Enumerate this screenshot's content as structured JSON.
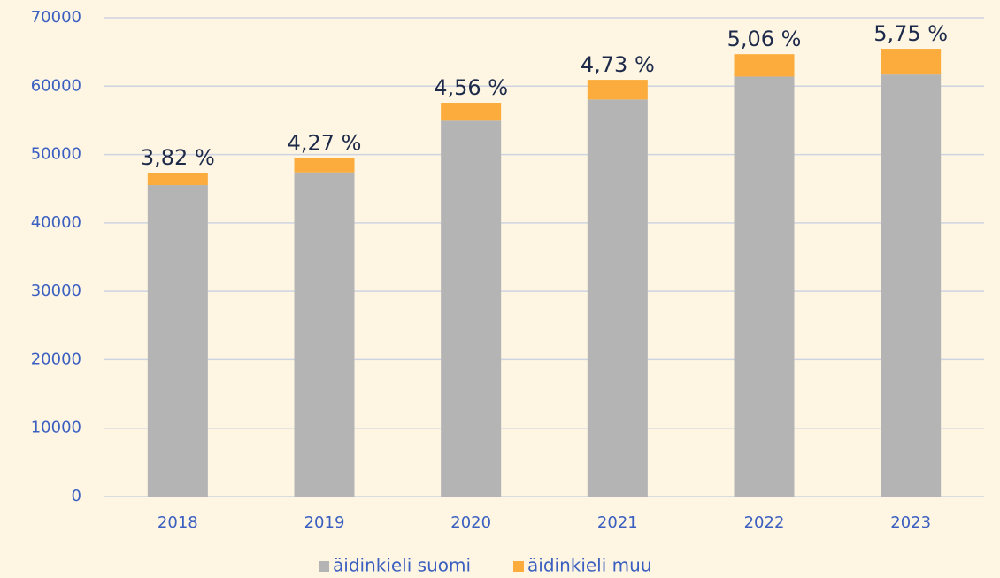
{
  "chart_data": {
    "type": "stacked_bar",
    "categories": [
      "2018",
      "2019",
      "2020",
      "2021",
      "2022",
      "2023"
    ],
    "series": [
      {
        "name": "äidinkieli suomi",
        "color": "#b4b4b4",
        "values": [
          45540,
          47400,
          54950,
          58050,
          61400,
          61700
        ]
      },
      {
        "name": "äidinkieli muu",
        "color": "#fbac3c",
        "values": [
          1810,
          2115,
          2625,
          2880,
          3270,
          3765
        ]
      }
    ],
    "annotations": [
      "3,82 %",
      "4,27 %",
      "4,56 %",
      "4,73 %",
      "5,06 %",
      "5,75 %"
    ],
    "ylim": [
      0,
      70000
    ],
    "yticks": [
      0,
      10000,
      20000,
      30000,
      40000,
      50000,
      60000,
      70000
    ],
    "grid": true,
    "legend": "bottom"
  }
}
